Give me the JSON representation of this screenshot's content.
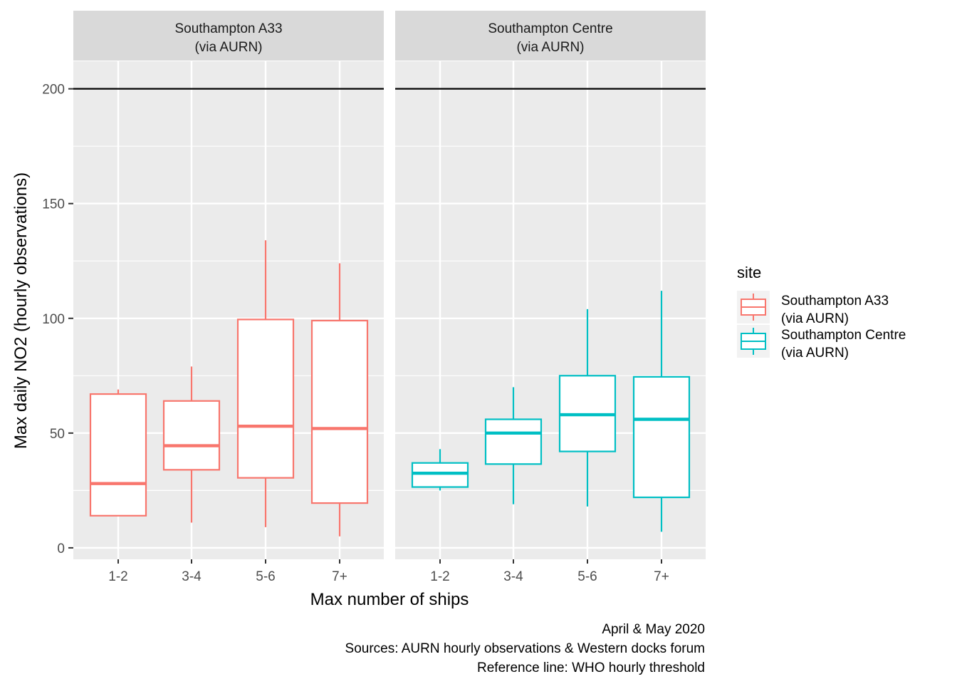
{
  "chart_data": {
    "type": "box",
    "ylabel": "Max daily NO2 (hourly observations)",
    "xlabel": "Max number of ships",
    "ylim": [
      -5,
      212
    ],
    "yticks": [
      0,
      50,
      100,
      150,
      200
    ],
    "categories": [
      "1-2",
      "3-4",
      "5-6",
      "7+"
    ],
    "reference_line": 200,
    "grid": true,
    "legend": {
      "title": "site",
      "position": "right",
      "entries": [
        {
          "line1": "Southampton A33",
          "line2": "(via AURN)",
          "color": "#F8766D"
        },
        {
          "line1": "Southampton Centre",
          "line2": "(via AURN)",
          "color": "#00BFC4"
        }
      ]
    },
    "facets": [
      {
        "line1": "Southampton A33",
        "line2": "(via AURN)",
        "color": "#F8766D",
        "boxes": [
          {
            "category": "1-2",
            "min": 14,
            "q1": 14,
            "median": 28,
            "q3": 67,
            "max": 69
          },
          {
            "category": "3-4",
            "min": 11,
            "q1": 34,
            "median": 44.5,
            "q3": 64,
            "max": 79
          },
          {
            "category": "5-6",
            "min": 9,
            "q1": 30.5,
            "median": 53,
            "q3": 99.5,
            "max": 134
          },
          {
            "category": "7+",
            "min": 5,
            "q1": 19.5,
            "median": 52,
            "q3": 99,
            "max": 124
          }
        ]
      },
      {
        "line1": "Southampton Centre",
        "line2": "(via AURN)",
        "color": "#00BFC4",
        "boxes": [
          {
            "category": "1-2",
            "min": 25,
            "q1": 26.5,
            "median": 32.5,
            "q3": 37,
            "max": 43
          },
          {
            "category": "3-4",
            "min": 19,
            "q1": 36.5,
            "median": 50,
            "q3": 56,
            "max": 70
          },
          {
            "category": "5-6",
            "min": 18,
            "q1": 42,
            "median": 58,
            "q3": 75,
            "max": 104
          },
          {
            "category": "7+",
            "min": 7,
            "q1": 22,
            "median": 56,
            "q3": 74.5,
            "max": 112
          }
        ]
      }
    ],
    "caption": [
      "April & May 2020",
      "Sources: AURN hourly observations & Western docks forum",
      "Reference line: WHO hourly threshold"
    ]
  }
}
